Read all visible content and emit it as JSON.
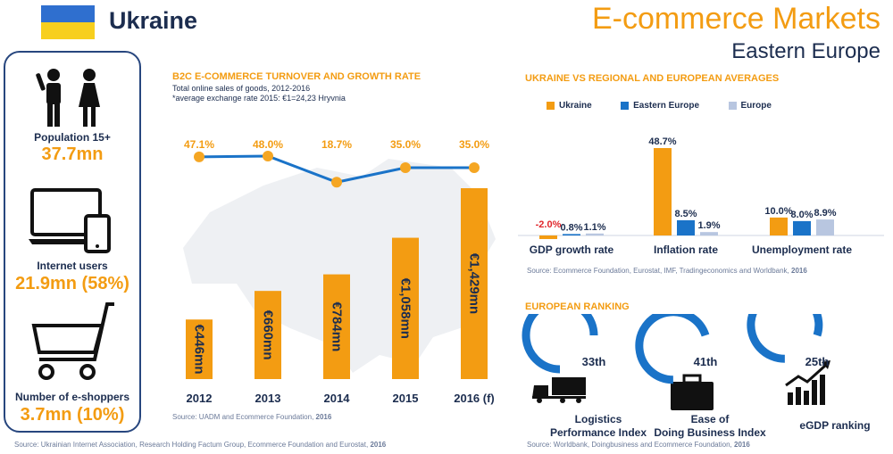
{
  "header": {
    "country": "Ukraine",
    "title": "E-commerce Markets",
    "subtitle": "Eastern Europe"
  },
  "colors": {
    "accent": "#f39c12",
    "navy": "#1c2d4f",
    "blue": "#1a73c8",
    "lightblue": "#b8c6e0",
    "red": "#e0262b"
  },
  "sidebar": {
    "population_label": "Population 15+",
    "population_value": "37.7mn",
    "internet_label": "Internet users",
    "internet_value": "21.9mn (58%)",
    "eshoppers_label": "Number of e-shoppers",
    "eshoppers_value": "3.7mn (10%)"
  },
  "turnover": {
    "title": "B2C E-COMMERCE TURNOVER AND GROWTH RATE",
    "subtitle": "Total online sales of goods, 2012-2016",
    "note": "*average exchange rate 2015: €1=24,23 Hryvnia",
    "source": "Source: UADM and Ecommerce Foundation,",
    "source_year": "2016"
  },
  "averages": {
    "title": "UKRAINE VS REGIONAL AND EUROPEAN AVERAGES",
    "source": "Source: Ecommerce Foundation, Eurostat, IMF, Tradingeconomics and Worldbank,",
    "source_year": "2016"
  },
  "ranking": {
    "title": "EUROPEAN RANKING",
    "source": "Source: Worldbank, Doingbusiness and Ecommerce Foundation,",
    "source_year": "2016",
    "items": [
      {
        "rank": "33th",
        "label1": "Logistics",
        "label2": "Performance Index",
        "fill": 0.75
      },
      {
        "rank": "41th",
        "label1": "Ease of",
        "label2": "Doing Business Index",
        "fill": 0.7
      },
      {
        "rank": "25th",
        "label1": "eGDP ranking",
        "label2": "",
        "fill": 0.8
      }
    ]
  },
  "footer": {
    "source": "Source: Ukrainian Internet Association, Research Holding Factum Group, Ecommerce Foundation and Eurostat,",
    "source_year": "2016"
  },
  "chart_data": [
    {
      "type": "bar",
      "categories": [
        "2012",
        "2013",
        "2014",
        "2015",
        "2016 (f)"
      ],
      "values": [
        446,
        660,
        784,
        1058,
        1429
      ],
      "value_labels": [
        "€446mn",
        "€660mn",
        "€784mn",
        "€1,058mn",
        "€1,429mn"
      ],
      "growth_rates": [
        47.1,
        48.0,
        18.7,
        35.0,
        35.0
      ],
      "growth_labels": [
        "47.1%",
        "48.0%",
        "18.7%",
        "35.0%",
        "35.0%"
      ],
      "title": "B2C E-COMMERCE TURNOVER AND GROWTH RATE"
    },
    {
      "type": "bar",
      "categories": [
        "GDP growth rate",
        "Inflation rate",
        "Unemployment rate"
      ],
      "series": [
        {
          "name": "Ukraine",
          "values": [
            -2.0,
            48.7,
            10.0
          ],
          "labels": [
            "-2.0%",
            "48.7%",
            "10.0%"
          ],
          "color": "#f39c12"
        },
        {
          "name": "Eastern Europe",
          "values": [
            0.8,
            8.5,
            8.0
          ],
          "labels": [
            "0.8%",
            "8.5%",
            "8.0%"
          ],
          "color": "#1a73c8"
        },
        {
          "name": "Europe",
          "values": [
            1.1,
            1.9,
            8.9
          ],
          "labels": [
            "1.1%",
            "1.9%",
            "8.9%"
          ],
          "color": "#b8c6e0"
        }
      ],
      "title": "UKRAINE VS REGIONAL AND EUROPEAN AVERAGES"
    }
  ]
}
